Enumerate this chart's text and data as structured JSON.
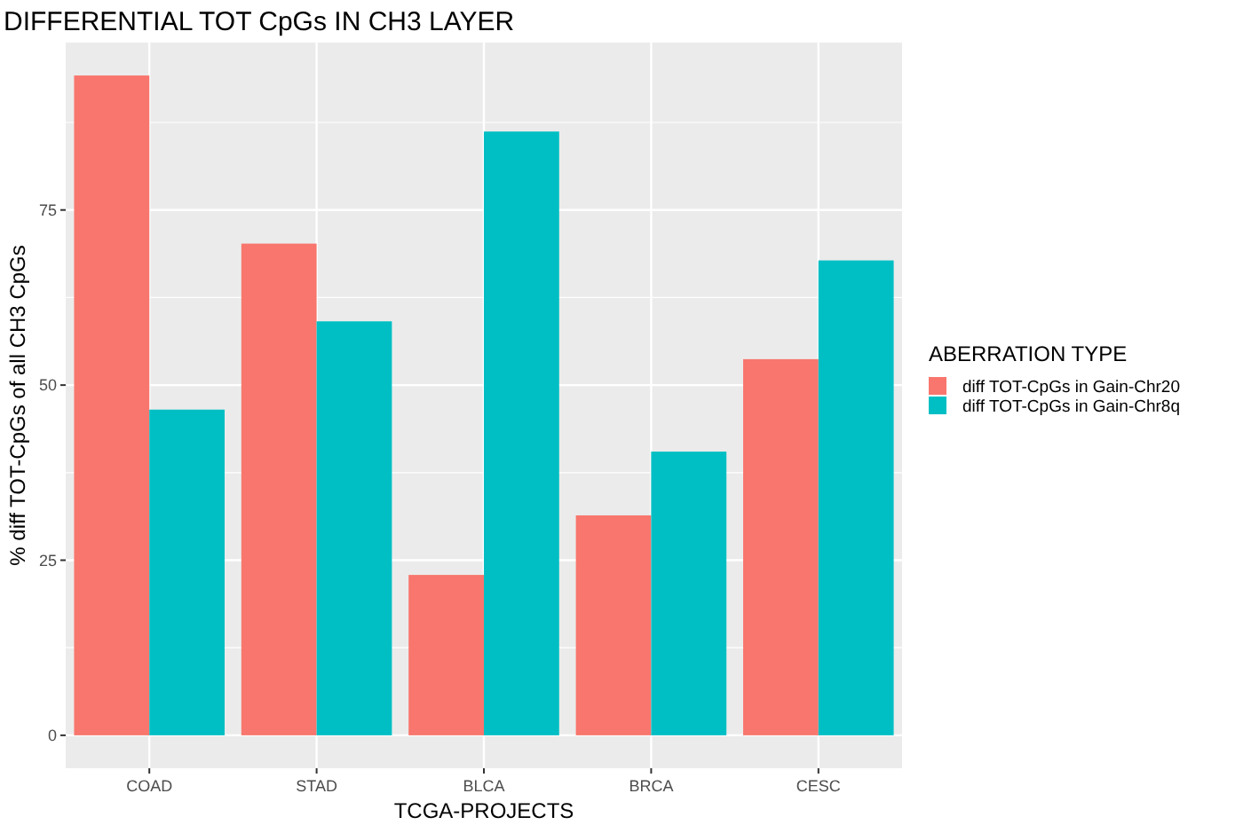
{
  "chart_data": {
    "type": "bar",
    "title": "DIFFERENTIAL TOT CpGs IN CH3 LAYER",
    "xlabel": "TCGA-PROJECTS",
    "ylabel": "% diff TOT-CpGs of all CH3 CpGs",
    "legend_title": "ABERRATION TYPE",
    "categories": [
      "COAD",
      "STAD",
      "BLCA",
      "BRCA",
      "CESC"
    ],
    "series": [
      {
        "name": "diff TOT-CpGs in Gain-Chr20",
        "color": "#f8766d",
        "values": [
          94.2,
          70.2,
          22.9,
          31.4,
          53.7
        ]
      },
      {
        "name": "diff TOT-CpGs in Gain-Chr8q",
        "color": "#00bfc4",
        "values": [
          46.5,
          59.1,
          86.2,
          40.5,
          67.8
        ]
      }
    ],
    "ylim": [
      -4.7,
      98.9
    ],
    "yticks": [
      0,
      25,
      50,
      75
    ],
    "grid": true,
    "legend": "right"
  }
}
